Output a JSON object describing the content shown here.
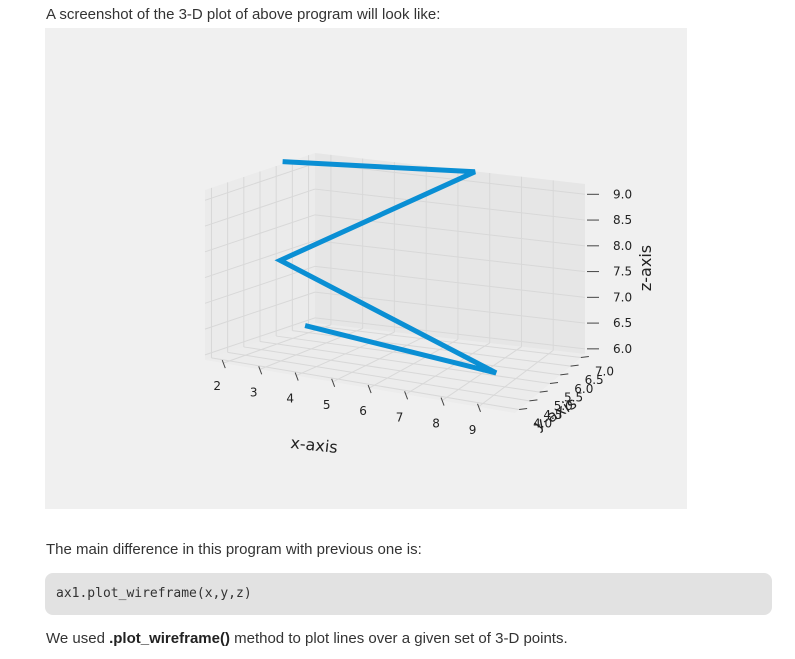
{
  "intro_text": "A screenshot of the 3-D plot of above program will look like:",
  "diff_text": "The main difference in this program with previous one is:",
  "code_text": "ax1.plot_wireframe(x,y,z)",
  "outro": {
    "prefix": "We used ",
    "method": ".plot_wireframe()",
    "suffix": " method to plot lines over a given set of 3-D points."
  },
  "colors": {
    "line": "#0a8fd4",
    "figure_bg": "#f0f0f0",
    "grid": "#d8d8d8"
  },
  "chart_data": {
    "type": "line",
    "projection": "3d",
    "xlabel": "x-axis",
    "ylabel": "y-axis",
    "zlabel": "z-axis",
    "x_ticks": [
      "2",
      "3",
      "4",
      "5",
      "6",
      "7",
      "8",
      "9"
    ],
    "y_ticks": [
      "4.0",
      "4.5",
      "5.0",
      "5.5",
      "6.0",
      "6.5",
      "7.0"
    ],
    "z_ticks": [
      "6.0",
      "6.5",
      "7.0",
      "7.5",
      "8.0",
      "8.5",
      "9.0"
    ],
    "xlim": [
      1.5,
      10
    ],
    "ylim": [
      3.8,
      7.2
    ],
    "zlim": [
      5.9,
      9.2
    ],
    "series": [
      {
        "x": [
          1,
          7,
          2,
          9,
          3
        ],
        "y": [
          6.7,
          6.6,
          5.6,
          4.6,
          5.3
        ],
        "z": [
          9.1,
          9.4,
          7.5,
          6.3,
          6.4
        ]
      }
    ],
    "grid": true,
    "legend": "none"
  }
}
